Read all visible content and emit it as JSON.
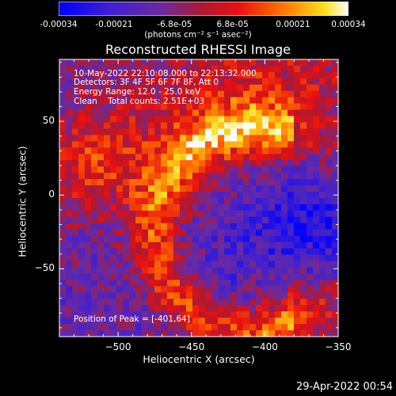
{
  "colorbar": {
    "tick_labels": [
      "-0.00034",
      "-0.00021",
      "-6.8e-05",
      "6.8e-05",
      "0.00021",
      "0.00034"
    ],
    "tick_values": [
      -0.00034,
      -0.00021,
      -6.8e-05,
      6.8e-05,
      0.00021,
      0.00034
    ],
    "range": [
      -0.00034,
      0.00034
    ],
    "units": "(photons cm⁻² s⁻¹ asec⁻²)",
    "colors": [
      "#0000ff",
      "#5030c0",
      "#a02060",
      "#e01010",
      "#ff8000",
      "#ffe000",
      "#ffffff"
    ]
  },
  "chart_data": {
    "type": "heatmap",
    "title": "Reconstructed RHESSI Image",
    "xlabel": "Heliocentric X (arcsec)",
    "ylabel": "Heliocentric Y (arcsec)",
    "xlim": [
      -540,
      -350
    ],
    "ylim": [
      -96,
      92
    ],
    "x_ticks": [
      -500,
      -450,
      -400,
      -350
    ],
    "x_tick_labels": [
      "−500",
      "−450",
      "−400",
      "−350"
    ],
    "y_ticks": [
      50,
      0,
      -50
    ],
    "y_tick_labels": [
      "50",
      "0",
      "−50"
    ],
    "peak_position": [
      -401,
      64
    ],
    "annotations": [
      "10-May-2022 22:10:08.000 to 22:13:32.000",
      "Detectors: 3F 4F 5F 6F 7F 8F, Att 0",
      "Energy Range: 12.0 - 25.0 keV",
      "Clean    Total counts: 2.51E+03"
    ],
    "peak_label": "Position of Peak = [-401,64]"
  },
  "footer": {
    "timestamp": "29-Apr-2022 00:54"
  }
}
